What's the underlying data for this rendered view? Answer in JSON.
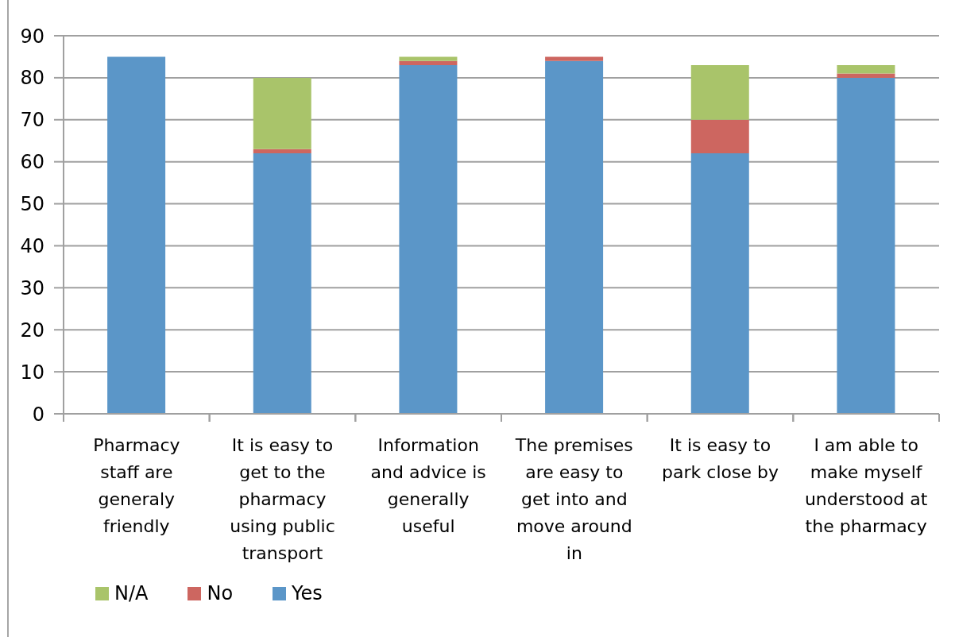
{
  "chart_data": {
    "type": "bar",
    "categories": [
      "Pharmacy staff are generaly friendly",
      "It is easy to get to the pharmacy using public transport",
      "Information and advice is generally useful",
      "The premises are easy to get into and move around in",
      "It is easy to park close by",
      "I am able to make myself understood at the pharmacy"
    ],
    "series": [
      {
        "name": "Yes",
        "color": "#5b96c8",
        "values": [
          85,
          62,
          83,
          84,
          62,
          80
        ]
      },
      {
        "name": "No",
        "color": "#cd6660",
        "values": [
          0,
          1,
          1,
          1,
          8,
          1
        ]
      },
      {
        "name": "N/A",
        "color": "#a9c46a",
        "values": [
          0,
          17,
          1,
          0,
          13,
          2
        ]
      }
    ],
    "stacked": true,
    "ylim": [
      0,
      90
    ],
    "yticks": [
      0,
      10,
      20,
      30,
      40,
      50,
      60,
      70,
      80,
      90
    ],
    "grid": "y",
    "legend": "bottom left"
  }
}
